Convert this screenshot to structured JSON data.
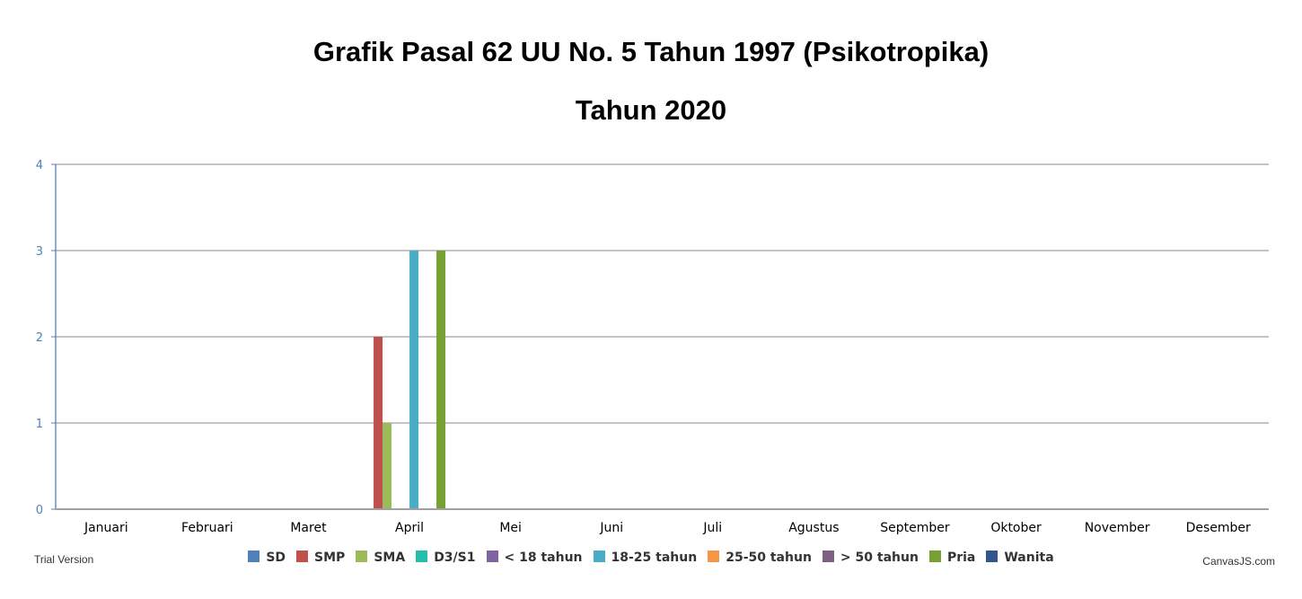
{
  "chart_data": {
    "type": "bar",
    "title": "Grafik Pasal 62 UU No. 5 Tahun 1997 (Psikotropika)",
    "subtitle": "Tahun 2020",
    "categories": [
      "Januari",
      "Februari",
      "Maret",
      "April",
      "Mei",
      "Juni",
      "Juli",
      "Agustus",
      "September",
      "Oktober",
      "November",
      "Desember"
    ],
    "ylim": [
      0,
      4
    ],
    "yticks": [
      "0",
      "1",
      "2",
      "3",
      "4"
    ],
    "grid": true,
    "legend_position": "bottom",
    "series": [
      {
        "name": "SD",
        "color": "#4f81bc",
        "values": [
          0,
          0,
          0,
          0,
          0,
          0,
          0,
          0,
          0,
          0,
          0,
          0
        ]
      },
      {
        "name": "SMP",
        "color": "#c0504e",
        "values": [
          0,
          0,
          0,
          2,
          0,
          0,
          0,
          0,
          0,
          0,
          0,
          0
        ]
      },
      {
        "name": "SMA",
        "color": "#9bbb58",
        "values": [
          0,
          0,
          0,
          1,
          0,
          0,
          0,
          0,
          0,
          0,
          0,
          0
        ]
      },
      {
        "name": "D3/S1",
        "color": "#23bfaa",
        "values": [
          0,
          0,
          0,
          0,
          0,
          0,
          0,
          0,
          0,
          0,
          0,
          0
        ]
      },
      {
        "name": "< 18 tahun",
        "color": "#8064a1",
        "values": [
          0,
          0,
          0,
          0,
          0,
          0,
          0,
          0,
          0,
          0,
          0,
          0
        ]
      },
      {
        "name": "18-25 tahun",
        "color": "#4aacc5",
        "values": [
          0,
          0,
          0,
          3,
          0,
          0,
          0,
          0,
          0,
          0,
          0,
          0
        ]
      },
      {
        "name": "25-50 tahun",
        "color": "#f79647",
        "values": [
          0,
          0,
          0,
          0,
          0,
          0,
          0,
          0,
          0,
          0,
          0,
          0
        ]
      },
      {
        "name": "> 50 tahun",
        "color": "#7f6084",
        "values": [
          0,
          0,
          0,
          0,
          0,
          0,
          0,
          0,
          0,
          0,
          0,
          0
        ]
      },
      {
        "name": "Pria",
        "color": "#77a033",
        "values": [
          0,
          0,
          0,
          3,
          0,
          0,
          0,
          0,
          0,
          0,
          0,
          0
        ]
      },
      {
        "name": "Wanita",
        "color": "#33558b",
        "values": [
          0,
          0,
          0,
          0,
          0,
          0,
          0,
          0,
          0,
          0,
          0,
          0
        ]
      }
    ]
  },
  "watermark": {
    "trial": "Trial Version",
    "credit": "CanvasJS.com"
  }
}
